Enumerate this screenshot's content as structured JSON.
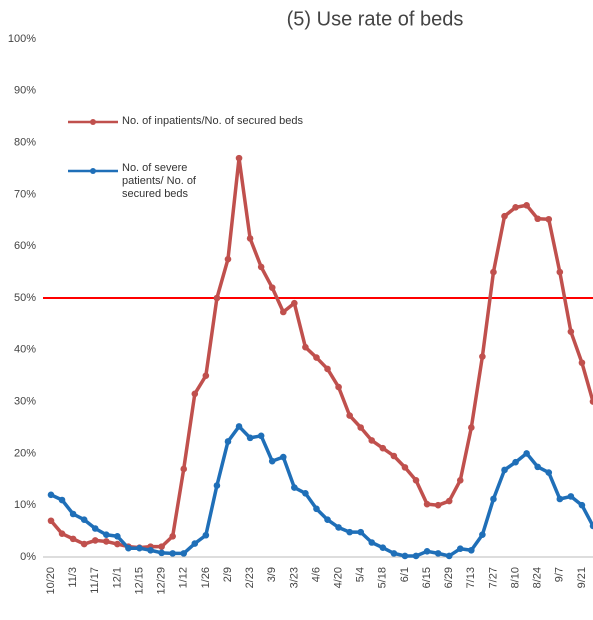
{
  "chart_data": {
    "type": "line",
    "title": "(5) Use rate of beds",
    "categories": [
      "10/20",
      null,
      "11/3",
      null,
      "11/17",
      null,
      "12/1",
      null,
      "12/15",
      null,
      "12/29",
      null,
      "1/12",
      null,
      "1/26",
      null,
      "2/9",
      null,
      "2/23",
      null,
      "3/9",
      null,
      "3/23",
      null,
      "4/6",
      null,
      "4/20",
      null,
      "5/4",
      null,
      "5/18",
      null,
      "6/1",
      null,
      "6/15",
      null,
      "6/29",
      null,
      "7/13",
      null,
      "7/27",
      null,
      "8/10",
      null,
      "8/24",
      null,
      "9/7",
      null,
      "9/21",
      null
    ],
    "series": [
      {
        "name": "No. of inpatients/No. of secured beds",
        "color": "#c0504d",
        "values": [
          7,
          4.5,
          3.5,
          2.5,
          3.2,
          3,
          2.5,
          2,
          1.8,
          2,
          2,
          4,
          17,
          31.5,
          35,
          50,
          57.5,
          77,
          61.5,
          56,
          52,
          47.3,
          49,
          40.5,
          38.5,
          36.3,
          32.8,
          27.3,
          25,
          22.5,
          21,
          19.5,
          17.3,
          14.8,
          10.2,
          10,
          10.8,
          14.8,
          25,
          38.7,
          55,
          65.8,
          67.5,
          67.9,
          65.3,
          65.2,
          55,
          43.5,
          37.5,
          30
        ]
      },
      {
        "name": "No. of severe patients/ No. of secured beds",
        "color": "#1f6fb8",
        "values": [
          12,
          11,
          8.3,
          7.2,
          5.5,
          4.3,
          4,
          1.7,
          1.7,
          1.3,
          0.8,
          0.7,
          0.7,
          2.6,
          4.2,
          13.8,
          22.3,
          25.2,
          23,
          23.4,
          18.5,
          19.3,
          13.4,
          12.3,
          9.3,
          7.2,
          5.7,
          4.8,
          4.8,
          2.8,
          1.8,
          0.7,
          0.2,
          0.2,
          1.1,
          0.7,
          0.2,
          1.6,
          1.3,
          4.3,
          11.2,
          16.8,
          18.3,
          20,
          17.4,
          16.3,
          11.2,
          11.7,
          10,
          6
        ]
      }
    ],
    "ylim": [
      0,
      100
    ],
    "yticks": [
      {
        "value": 0,
        "label": "0%"
      },
      {
        "value": 10,
        "label": "10%"
      },
      {
        "value": 20,
        "label": "20%"
      },
      {
        "value": 30,
        "label": "30%"
      },
      {
        "value": 40,
        "label": "40%"
      },
      {
        "value": 50,
        "label": "50%"
      },
      {
        "value": 60,
        "label": "60%"
      },
      {
        "value": 70,
        "label": "70%"
      },
      {
        "value": 80,
        "label": "80%"
      },
      {
        "value": 90,
        "label": "90%"
      },
      {
        "value": 100,
        "label": "100%"
      }
    ],
    "reference_line": {
      "value": 50,
      "color": "#ff0000"
    },
    "grid": false
  }
}
